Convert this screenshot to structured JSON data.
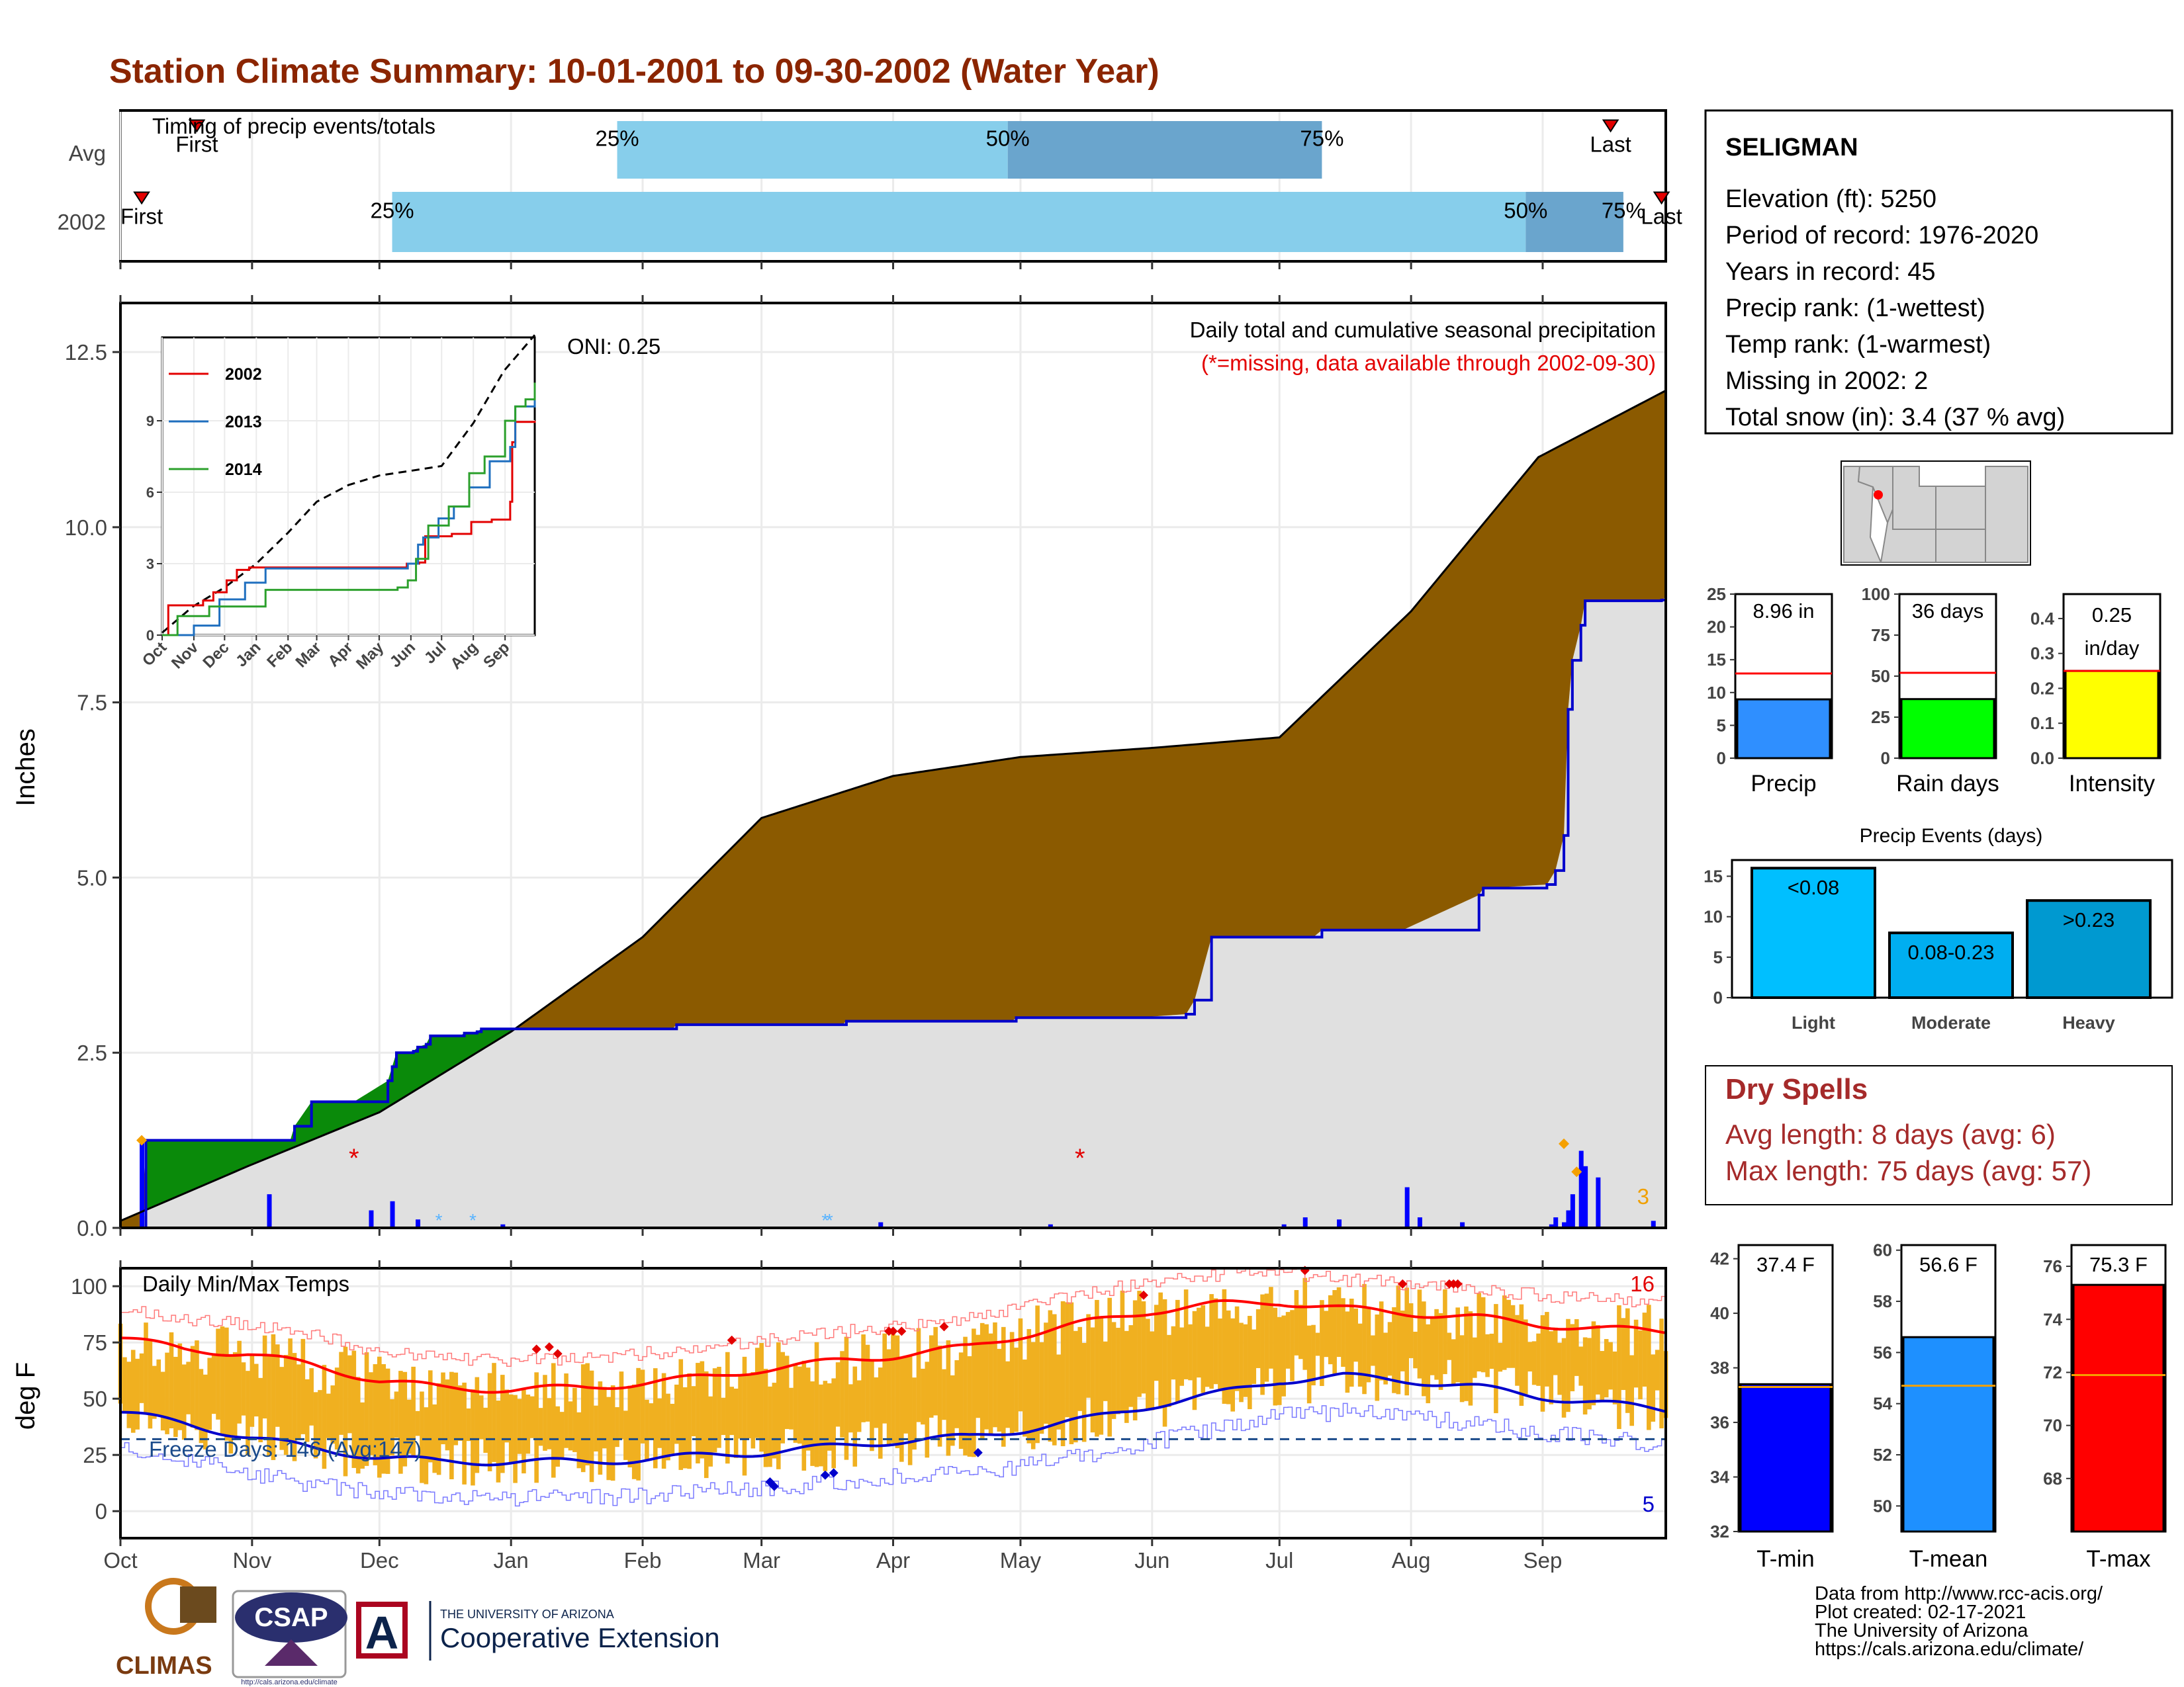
{
  "title": "Station Climate Summary: 10-01-2001 to 09-30-2002 (Water Year)",
  "months": [
    "Oct",
    "Nov",
    "Dec",
    "Jan",
    "Feb",
    "Mar",
    "Apr",
    "May",
    "Jun",
    "Jul",
    "Aug",
    "Sep"
  ],
  "timing": {
    "title": "Timing of precip events/totals",
    "rows": [
      {
        "label": "Avg",
        "first_label": "First",
        "last_label": "Last",
        "first_day": 18,
        "last_day": 351,
        "p25": 117,
        "p50": 209,
        "p75": 283
      },
      {
        "label": "2002",
        "first_label": "First",
        "last_label": "Last",
        "first_day": 5,
        "last_day": 363,
        "p25": 64,
        "p50": 331,
        "p75": 354
      }
    ],
    "pct_labels": [
      "25%",
      "50%",
      "75%"
    ],
    "colors": {
      "light": "#87ceeb",
      "dark": "#6aa5cd",
      "marker": "#e30000"
    }
  },
  "precip": {
    "ylabel": "Inches",
    "yticks": [
      "0.0",
      "2.5",
      "5.0",
      "7.5",
      "10.0",
      "12.5"
    ],
    "ylim": [
      0,
      13.2
    ],
    "annotation": "Daily total and cumulative seasonal precipitation",
    "missing_note": "(*=missing, data available through 2002-09-30)",
    "oni": "ONI: 0.25",
    "corner_count": "3",
    "colors": {
      "above": "#8b5a00",
      "below": "#0a8a0a",
      "cum": "#0000cc",
      "bars": "#0000ff",
      "gray": "#e0e0e0"
    },
    "avg_cum_days": [
      0,
      30,
      61,
      92,
      123,
      151,
      182,
      212,
      243,
      273,
      304,
      334,
      364
    ],
    "avg_cum_values": [
      0.1,
      0.88,
      1.65,
      2.8,
      4.15,
      5.85,
      6.45,
      6.72,
      6.85,
      7.0,
      8.8,
      11.0,
      11.95
    ],
    "year_cum_days": [
      0,
      5,
      6,
      40,
      41,
      45,
      50,
      55,
      63,
      64,
      65,
      69,
      70,
      72,
      73,
      80,
      81,
      84,
      85,
      89,
      92,
      94,
      130,
      131,
      170,
      171,
      210,
      211,
      239,
      251,
      253,
      257,
      281,
      283,
      302,
      320,
      321,
      322,
      336,
      338,
      340,
      341,
      342,
      344,
      345,
      350,
      363,
      364
    ],
    "year_cum_values": [
      0,
      0,
      1.25,
      1.25,
      1.45,
      1.8,
      1.8,
      1.8,
      2.1,
      2.3,
      2.5,
      2.52,
      2.58,
      2.62,
      2.74,
      2.74,
      2.78,
      2.8,
      2.84,
      2.84,
      2.84,
      2.84,
      2.84,
      2.9,
      2.9,
      2.95,
      2.95,
      3.0,
      3.0,
      3.05,
      3.25,
      4.15,
      4.15,
      4.25,
      4.25,
      4.75,
      4.85,
      4.85,
      4.9,
      5.1,
      5.6,
      7.4,
      8.1,
      8.6,
      8.95,
      8.95,
      8.96,
      9.0
    ],
    "bar_days": [
      5,
      35,
      59,
      64,
      70,
      90,
      179,
      219,
      274,
      279,
      287,
      303,
      306,
      316,
      337,
      338,
      340,
      341,
      342,
      344,
      345,
      348,
      361
    ],
    "bar_values": [
      1.25,
      0.48,
      0.25,
      0.38,
      0.12,
      0.05,
      0.08,
      0.05,
      0.05,
      0.15,
      0.12,
      0.58,
      0.15,
      0.08,
      0.05,
      0.15,
      0.08,
      0.25,
      0.48,
      1.1,
      0.88,
      0.72,
      0.1
    ],
    "missing_days": [
      55,
      226
    ],
    "missing_values": [
      1.0,
      1.0
    ],
    "snow_days": [
      75,
      83,
      166,
      167
    ],
    "orange_points_days": [
      5,
      340,
      343
    ],
    "orange_points_values": [
      1.25,
      1.2,
      0.8
    ],
    "inset": {
      "yticks": [
        "0",
        "3",
        "6",
        "9"
      ],
      "ylim": [
        0,
        12.5
      ],
      "xlabels": [
        "Oct",
        "Nov",
        "Dec",
        "Jan",
        "Feb",
        "Mar",
        "Apr",
        "May",
        "Jun",
        "Jul",
        "Aug",
        "Sep"
      ],
      "series": [
        {
          "name": "2002",
          "color": "#e30000",
          "days": [
            0,
            5,
            6,
            40,
            50,
            63,
            73,
            85,
            239,
            251,
            257,
            283,
            302,
            322,
            340,
            342,
            345,
            364
          ],
          "values": [
            0,
            0,
            1.25,
            1.45,
            1.8,
            2.3,
            2.74,
            2.84,
            3.0,
            3.05,
            4.15,
            4.25,
            4.75,
            4.85,
            5.6,
            8.1,
            8.95,
            9.0
          ]
        },
        {
          "name": "2013",
          "color": "#1f6fbf",
          "days": [
            0,
            30,
            31,
            55,
            56,
            80,
            81,
            100,
            101,
            230,
            240,
            250,
            255,
            270,
            285,
            300,
            320,
            340,
            345,
            364
          ],
          "values": [
            0,
            0,
            0.4,
            0.4,
            1.5,
            1.5,
            2.2,
            2.2,
            2.8,
            2.8,
            3.0,
            3.8,
            4.1,
            4.9,
            5.4,
            6.2,
            7.3,
            7.9,
            9.6,
            9.9
          ]
        },
        {
          "name": "2014",
          "color": "#2ca02c",
          "days": [
            0,
            14,
            15,
            45,
            46,
            100,
            101,
            230,
            240,
            248,
            260,
            280,
            300,
            315,
            335,
            345,
            355,
            364
          ],
          "values": [
            0,
            0,
            0.8,
            0.8,
            1.2,
            1.2,
            1.9,
            2.0,
            2.3,
            3.2,
            4.6,
            5.4,
            6.8,
            7.5,
            9.0,
            9.6,
            9.9,
            10.6
          ]
        }
      ],
      "avg_dashed": {
        "days": [
          0,
          30,
          61,
          92,
          123,
          151,
          182,
          212,
          243,
          273,
          304,
          334,
          364
        ],
        "values": [
          0.1,
          1.2,
          2.0,
          3.0,
          4.3,
          5.6,
          6.3,
          6.7,
          6.9,
          7.1,
          8.9,
          11.1,
          12.6
        ]
      }
    }
  },
  "temps": {
    "ylabel": "deg F",
    "panel_label": "Daily Min/Max Temps",
    "yticks": [
      "0",
      "25",
      "50",
      "75",
      "100"
    ],
    "ylim": [
      -12,
      108
    ],
    "freeze_label": "Freeze Days: 146 (Avg:147)",
    "hot_count": "16",
    "cold_count": "5",
    "freeze_line": 32,
    "colors": {
      "bars": "#f0b020",
      "avg_max": "#ff0000",
      "avg_min": "#0000cc",
      "rec_max": "#ff7a7a",
      "rec_min": "#7a7aff",
      "freeze": "#1a4a8a"
    },
    "avg_max_days": [
      0,
      15,
      30,
      45,
      61,
      75,
      92,
      110,
      123,
      140,
      151,
      170,
      182,
      200,
      212,
      228,
      243,
      258,
      273,
      288,
      304,
      320,
      334,
      349,
      364
    ],
    "avg_max_vals": [
      77,
      72,
      70,
      65,
      58,
      55,
      54,
      55,
      57,
      60,
      63,
      67,
      69,
      73,
      78,
      84,
      89,
      92,
      93,
      90,
      88,
      86,
      83,
      81,
      80
    ],
    "avg_min_days": [
      0,
      15,
      30,
      45,
      61,
      75,
      92,
      110,
      123,
      140,
      151,
      170,
      182,
      200,
      212,
      228,
      243,
      258,
      273,
      288,
      304,
      320,
      334,
      349,
      364
    ],
    "avg_min_vals": [
      44,
      39,
      33,
      28,
      24,
      22,
      22,
      22,
      23,
      25,
      26,
      29,
      31,
      33,
      36,
      41,
      47,
      52,
      58,
      60,
      58,
      55,
      51,
      48,
      45
    ],
    "hot_dots_days": [
      98,
      101,
      103,
      144,
      181,
      182,
      184,
      194,
      241,
      279,
      302,
      314,
      313,
      315
    ],
    "hot_dots_vals": [
      72,
      73,
      70,
      76,
      80,
      80,
      80,
      82,
      96,
      107,
      101,
      101,
      101,
      101
    ],
    "cold_dots_days": [
      153,
      154,
      166,
      168,
      202
    ],
    "cold_dots_vals": [
      13,
      11,
      16,
      17,
      26
    ]
  },
  "station": {
    "name": "SELIGMAN",
    "lines": [
      "Elevation (ft): 5250",
      "Period of record: 1976-2020",
      "Years in record: 45",
      "Precip rank:  (1-wettest)",
      "Temp rank:  (1-warmest)",
      "Missing in 2002: 2",
      "Total snow (in): 3.4 (37 % avg)"
    ]
  },
  "map": {
    "dot_color": "#ff0000"
  },
  "mini_bars": [
    {
      "label": "Precip",
      "value_text": "8.96 in",
      "value": 8.96,
      "avg": 12.9,
      "ymax": 25,
      "yticks": [
        "0",
        "5",
        "10",
        "15",
        "20",
        "25"
      ],
      "color": "#2f8fff"
    },
    {
      "label": "Rain days",
      "value_text": "36 days",
      "value": 36,
      "avg": 52,
      "ymax": 100,
      "yticks": [
        "0",
        "25",
        "50",
        "75",
        "100"
      ],
      "color": "#00ff00"
    },
    {
      "label": "Intensity",
      "value_text": "0.25",
      "value_text2": "in/day",
      "value": 0.25,
      "avg": 0.25,
      "ymax": 0.47,
      "yticks": [
        "0.0",
        "0.1",
        "0.2",
        "0.3",
        "0.4"
      ],
      "color": "#ffff00"
    }
  ],
  "events": {
    "title": "Precip Events (days)",
    "yticks": [
      "0",
      "5",
      "10",
      "15"
    ],
    "ymax": 17,
    "bars": [
      {
        "cat": "Light",
        "label": "<0.08",
        "value": 16,
        "color": "#00bfff"
      },
      {
        "cat": "Moderate",
        "label": "0.08-0.23",
        "value": 8,
        "color": "#00aef0"
      },
      {
        "cat": "Heavy",
        "label": ">0.23",
        "value": 12,
        "color": "#0099d0"
      }
    ]
  },
  "dry_spells": {
    "title": "Dry Spells",
    "avg_line": "Avg length: 8 days (avg: 6)",
    "max_line": "Max length: 75 days (avg: 57)"
  },
  "temp_bars": [
    {
      "label": "T-min",
      "value_text": "37.4 F",
      "value": 37.4,
      "avg": 37.3,
      "ymin": 32,
      "ymax": 42.5,
      "yticks": [
        "32",
        "34",
        "36",
        "38",
        "40",
        "42"
      ],
      "color": "#0000ff"
    },
    {
      "label": "T-mean",
      "value_text": "56.6 F",
      "value": 56.6,
      "avg": 54.7,
      "ymin": 49,
      "ymax": 60.2,
      "yticks": [
        "50",
        "52",
        "54",
        "56",
        "58",
        "60"
      ],
      "color": "#1e90ff"
    },
    {
      "label": "T-max",
      "value_text": "75.3 F",
      "value": 75.3,
      "avg": 71.9,
      "ymin": 66,
      "ymax": 76.8,
      "yticks": [
        "68",
        "70",
        "72",
        "74",
        "76"
      ],
      "color": "#ff0000"
    }
  ],
  "footer": {
    "lines": [
      "Data from http://www.rcc-acis.org/",
      "Plot created: 02-17-2021",
      "The University of Arizona",
      "https://cals.arizona.edu/climate/"
    ],
    "climas": "CLIMAS",
    "csap": "CSAP",
    "csap_url": "http://cals.arizona.edu/climate",
    "ua_small": "THE UNIVERSITY OF ARIZONA",
    "ua_big": "Cooperative Extension",
    "ua_letter": "A"
  }
}
